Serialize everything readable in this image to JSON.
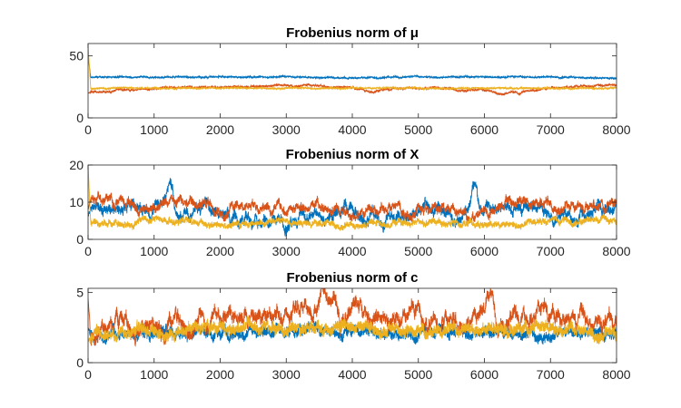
{
  "chart_data": [
    {
      "type": "line",
      "title": "Frobenius norm of μ",
      "xlim": [
        0,
        8000
      ],
      "ylim": [
        0,
        60
      ],
      "xticks": [
        0,
        1000,
        2000,
        3000,
        4000,
        5000,
        6000,
        7000,
        8000
      ],
      "yticks": [
        0,
        50
      ],
      "series": [
        {
          "color": "#0072BD",
          "start": 50,
          "mean": 33,
          "noise": 0.6,
          "drift": 0.4,
          "spike_pos": [],
          "spike_amp": [],
          "anchors_x": [
            0,
            1000,
            2000,
            3000,
            4000,
            5000,
            6000,
            7000,
            8000
          ],
          "anchors_y": [
            33,
            33,
            33,
            33,
            32,
            33,
            33,
            33,
            32
          ]
        },
        {
          "color": "#D95319",
          "start": 20,
          "mean": 24,
          "noise": 0.7,
          "drift": 0.8,
          "spike_pos": [],
          "spike_amp": [],
          "anchors_x": [
            0,
            300,
            1000,
            2000,
            3000,
            4000,
            4200,
            5000,
            6000,
            6300,
            7000,
            8000
          ],
          "anchors_y": [
            20,
            21,
            24,
            25,
            26,
            25,
            21,
            24,
            22,
            19,
            25,
            26
          ]
        },
        {
          "color": "#EDB120",
          "start": 58,
          "mean": 24,
          "noise": 0.6,
          "drift": 0.3,
          "spike_pos": [],
          "spike_amp": [],
          "anchors_x": [
            0,
            1000,
            2000,
            3000,
            4000,
            5000,
            6000,
            7000,
            8000
          ],
          "anchors_y": [
            24,
            24,
            24,
            24,
            24,
            24,
            24,
            24,
            24
          ]
        }
      ]
    },
    {
      "type": "line",
      "title": "Frobenius norm of X",
      "xlim": [
        0,
        8000
      ],
      "ylim": [
        0,
        20
      ],
      "xticks": [
        0,
        1000,
        2000,
        3000,
        4000,
        5000,
        6000,
        7000,
        8000
      ],
      "yticks": [
        0,
        10,
        20
      ],
      "series": [
        {
          "color": "#0072BD",
          "start": 6,
          "mean": 7,
          "noise": 1.0,
          "drift": 1.6,
          "spike_pos": [
            1250,
            5850
          ],
          "spike_amp": [
            7,
            8
          ],
          "anchors_x": [
            0,
            500,
            1000,
            1500,
            2000,
            2500,
            3000,
            3500,
            4000,
            4500,
            5000,
            5500,
            6000,
            6500,
            7000,
            7500,
            8000
          ],
          "anchors_y": [
            9,
            9,
            8,
            8,
            6,
            7,
            5,
            6,
            8,
            6,
            7,
            6,
            8,
            9,
            6,
            7,
            8
          ]
        },
        {
          "color": "#D95319",
          "start": 8,
          "mean": 9,
          "noise": 0.9,
          "drift": 1.3,
          "spike_pos": [],
          "spike_amp": [],
          "anchors_x": [
            0,
            500,
            1000,
            1500,
            2000,
            2500,
            3000,
            3500,
            4000,
            4500,
            5000,
            5500,
            6000,
            6500,
            7000,
            7500,
            8000
          ],
          "anchors_y": [
            11,
            10,
            9,
            10,
            8,
            9,
            8,
            9,
            7,
            8,
            8,
            8,
            7,
            10,
            9,
            9,
            10
          ]
        },
        {
          "color": "#EDB120",
          "start": 20,
          "mean": 4.5,
          "noise": 0.7,
          "drift": 0.7,
          "spike_pos": [],
          "spike_amp": [],
          "anchors_x": [
            0,
            1000,
            2000,
            3000,
            4000,
            5000,
            6000,
            7000,
            8000
          ],
          "anchors_y": [
            4,
            5,
            4,
            5,
            4,
            5,
            4,
            5,
            5
          ]
        }
      ]
    },
    {
      "type": "line",
      "title": "Frobenius norm of c",
      "xlim": [
        0,
        8000
      ],
      "ylim": [
        0,
        5.3
      ],
      "xticks": [
        0,
        1000,
        2000,
        3000,
        4000,
        5000,
        6000,
        7000,
        8000
      ],
      "yticks": [
        0,
        5
      ],
      "series": [
        {
          "color": "#0072BD",
          "start": 2.5,
          "mean": 2.0,
          "noise": 0.3,
          "drift": 0.3,
          "spike_pos": [],
          "spike_amp": [],
          "anchors_x": [
            0,
            1000,
            2000,
            3000,
            4000,
            5000,
            6000,
            7000,
            8000
          ],
          "anchors_y": [
            1.8,
            2.0,
            2.0,
            2.3,
            2.1,
            2.0,
            2.2,
            1.9,
            2.0
          ]
        },
        {
          "color": "#D95319",
          "start": 4.6,
          "mean": 3.0,
          "noise": 0.35,
          "drift": 0.6,
          "spike_pos": [
            3550,
            6100
          ],
          "spike_amp": [
            1.4,
            1.3
          ],
          "anchors_x": [
            0,
            500,
            1000,
            1500,
            2000,
            2500,
            3000,
            3500,
            4000,
            4500,
            5000,
            5500,
            6000,
            6500,
            7000,
            7500,
            8000
          ],
          "anchors_y": [
            2.0,
            2.2,
            2.3,
            2.8,
            3.2,
            3.4,
            3.0,
            3.8,
            3.5,
            3.2,
            3.3,
            2.8,
            3.5,
            3.3,
            3.3,
            3.1,
            3.0
          ]
        },
        {
          "color": "#EDB120",
          "start": 1.5,
          "mean": 2.2,
          "noise": 0.35,
          "drift": 0.3,
          "spike_pos": [],
          "spike_amp": [],
          "anchors_x": [
            0,
            1000,
            2000,
            3000,
            4000,
            5000,
            6000,
            7000,
            8000
          ],
          "anchors_y": [
            1.8,
            2.2,
            2.4,
            2.5,
            2.4,
            2.3,
            2.4,
            2.3,
            2.2
          ]
        }
      ]
    }
  ]
}
